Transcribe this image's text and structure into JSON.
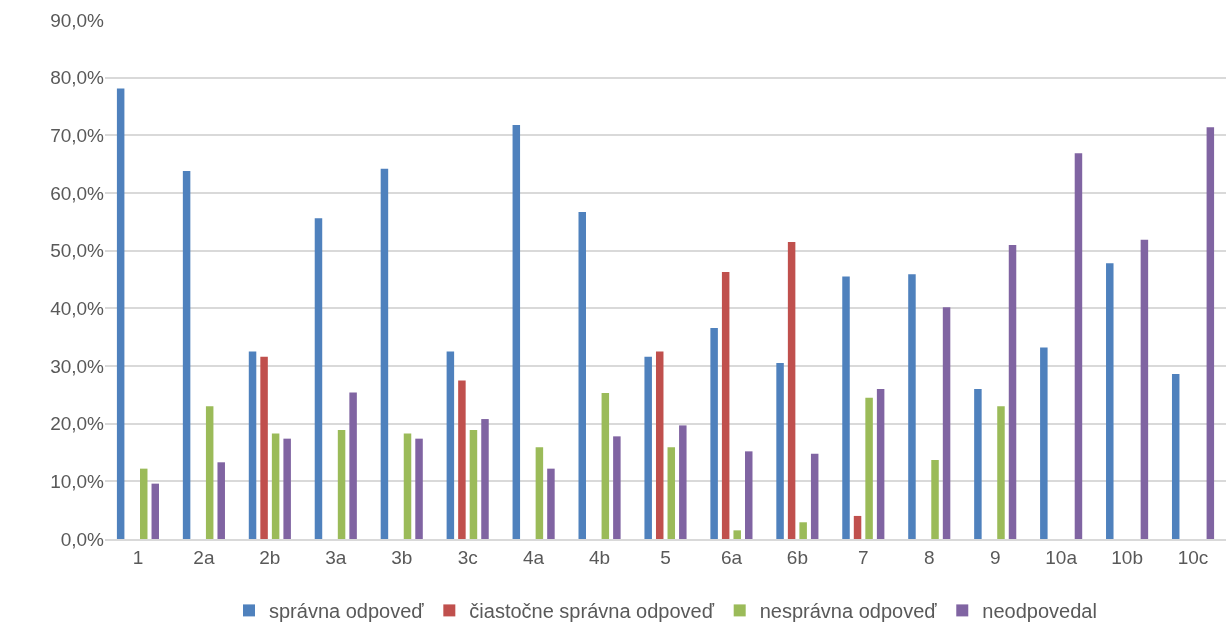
{
  "chart_data": {
    "type": "bar",
    "categories": [
      "1",
      "2a",
      "2b",
      "3a",
      "3b",
      "3c",
      "4a",
      "4b",
      "5",
      "6a",
      "6b",
      "7",
      "8",
      "9",
      "10a",
      "10b",
      "10c"
    ],
    "series": [
      {
        "name": "správna odpoveď",
        "color": "#4f81bd",
        "values": [
          78.1,
          63.8,
          32.5,
          55.6,
          64.2,
          32.5,
          71.8,
          56.7,
          31.6,
          36.6,
          30.5,
          45.5,
          45.9,
          26.0,
          33.2,
          47.8,
          28.6
        ]
      },
      {
        "name": "čiastočne správna odpoveď",
        "color": "#c0504d",
        "values": [
          null,
          null,
          31.6,
          null,
          null,
          27.5,
          null,
          null,
          32.5,
          46.3,
          51.5,
          4.0,
          null,
          null,
          null,
          null,
          null
        ]
      },
      {
        "name": "nesprávna odpoveď",
        "color": "#9bbb59",
        "values": [
          12.2,
          23.0,
          18.3,
          18.9,
          18.3,
          18.9,
          15.9,
          25.3,
          15.9,
          1.5,
          2.9,
          24.5,
          13.7,
          23.0,
          null,
          null,
          null
        ]
      },
      {
        "name": "neodpovedal",
        "color": "#8064a2",
        "values": [
          9.6,
          13.3,
          17.4,
          25.4,
          17.4,
          20.8,
          12.2,
          17.8,
          19.7,
          15.2,
          14.8,
          26.0,
          40.2,
          51.0,
          66.9,
          51.9,
          71.4
        ]
      }
    ],
    "ylim": [
      0,
      90
    ],
    "yticks": [
      {
        "value": 0,
        "label": "0,0%"
      },
      {
        "value": 10,
        "label": "10,0%"
      },
      {
        "value": 20,
        "label": "20,0%"
      },
      {
        "value": 30,
        "label": "30,0%"
      },
      {
        "value": 40,
        "label": "40,0%"
      },
      {
        "value": 50,
        "label": "50,0%"
      },
      {
        "value": 60,
        "label": "60,0%"
      },
      {
        "value": 70,
        "label": "70,0%"
      },
      {
        "value": 80,
        "label": "80,0%"
      },
      {
        "value": 90,
        "label": "90,0%"
      }
    ],
    "grid": "y",
    "legend": "bottom"
  }
}
